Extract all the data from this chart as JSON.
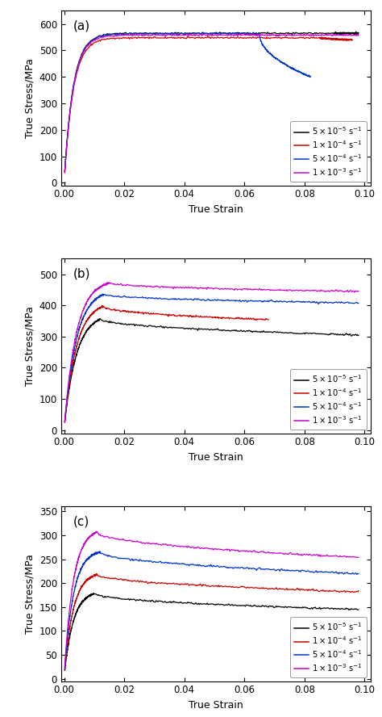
{
  "panels": [
    {
      "label": "(a)",
      "ylabel": "True Stress/MPa",
      "xlabel": "True Strain",
      "ylim": [
        -10,
        650
      ],
      "yticks": [
        0,
        100,
        200,
        300,
        400,
        500,
        600
      ],
      "xlim": [
        -0.001,
        0.102
      ],
      "xticks": [
        0.0,
        0.02,
        0.04,
        0.06,
        0.08,
        0.1
      ]
    },
    {
      "label": "(b)",
      "ylabel": "True Stress/MPa",
      "xlabel": "True Strain",
      "ylim": [
        -10,
        550
      ],
      "yticks": [
        0,
        100,
        200,
        300,
        400,
        500
      ],
      "xlim": [
        -0.001,
        0.102
      ],
      "xticks": [
        0.0,
        0.02,
        0.04,
        0.06,
        0.08,
        0.1
      ]
    },
    {
      "label": "(c)",
      "ylabel": "True Stress/MPa",
      "xlabel": "True Strain",
      "ylim": [
        -5,
        360
      ],
      "yticks": [
        0,
        50,
        100,
        150,
        200,
        250,
        300,
        350
      ],
      "xlim": [
        -0.001,
        0.102
      ],
      "xticks": [
        0.0,
        0.02,
        0.04,
        0.06,
        0.08,
        0.1
      ]
    }
  ],
  "legend_colors": [
    "#000000",
    "#cc0000",
    "#0033cc",
    "#cc00cc"
  ],
  "background_color": "#ffffff",
  "label_font_size": 9,
  "tick_font_size": 8.5
}
